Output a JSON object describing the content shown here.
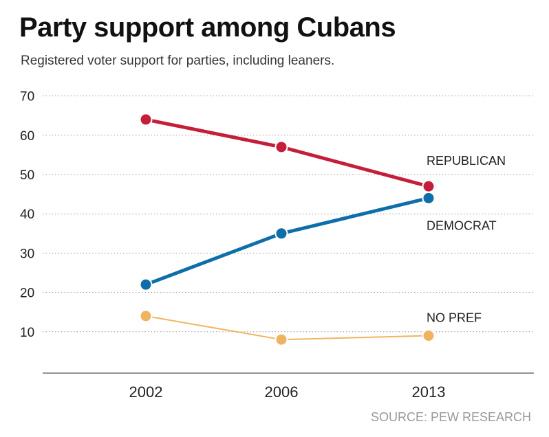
{
  "title": "Party support among Cubans",
  "subtitle": "Registered voter support for parties, including leaners.",
  "source": "SOURCE: PEW RESEARCH",
  "chart_data": {
    "type": "line",
    "title": "Party support among Cubans",
    "subtitle": "Registered voter support for parties, including leaners.",
    "xlabel": "",
    "ylabel": "",
    "categories": [
      "2002",
      "2006",
      "2013"
    ],
    "ylim": [
      0,
      70
    ],
    "yticks": [
      10,
      20,
      30,
      40,
      50,
      60,
      70
    ],
    "grid": "horizontal dotted",
    "legend": "direct labels at right",
    "series": [
      {
        "name": "REPUBLICAN",
        "values": [
          64,
          57,
          47
        ],
        "color": "#c41e3a",
        "line": "thick"
      },
      {
        "name": "DEMOCRAT",
        "values": [
          22,
          35,
          44
        ],
        "color": "#0e6ea9",
        "line": "thick"
      },
      {
        "name": "NO PREF",
        "values": [
          14,
          8,
          9
        ],
        "color": "#f0b460",
        "line": "thin"
      }
    ]
  }
}
